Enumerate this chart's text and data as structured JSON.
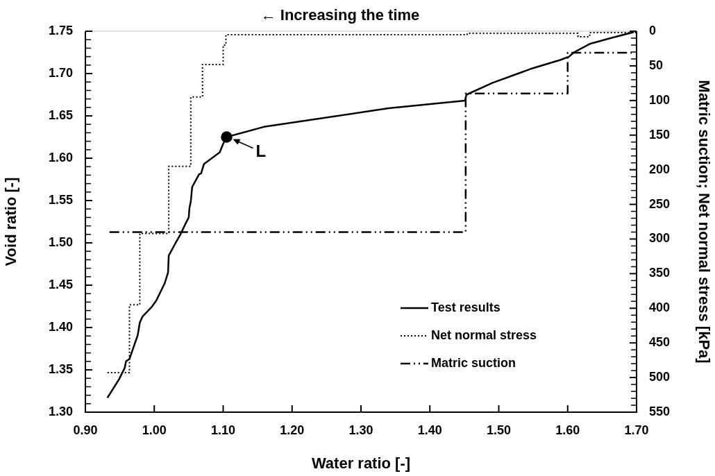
{
  "chart_data": {
    "type": "line",
    "xlabel": "Water ratio [-]",
    "ylabel": "Void ratio [-]",
    "y2label": "Matric suction; Net normal stress [kPa]",
    "annotations": [
      "← Increasing the time",
      {
        "text": "L",
        "x": 1.105,
        "y": 1.625
      }
    ],
    "legend": "bottom right",
    "marker": "none",
    "xlim": [
      0.9,
      1.7
    ],
    "xticks": [
      {
        "value": 0.9,
        "label": "0.90"
      },
      {
        "value": 1.0,
        "label": "1.00"
      },
      {
        "value": 1.1,
        "label": "1.10"
      },
      {
        "value": 1.2,
        "label": "1.20"
      },
      {
        "value": 1.3,
        "label": "1.30"
      },
      {
        "value": 1.4,
        "label": "1.40"
      },
      {
        "value": 1.5,
        "label": "1.50"
      },
      {
        "value": 1.6,
        "label": "1.60"
      },
      {
        "value": 1.7,
        "label": "1.70"
      }
    ],
    "ylim": [
      1.3,
      1.75
    ],
    "yticks": [
      {
        "value": 1.3,
        "label": "1.30"
      },
      {
        "value": 1.31,
        "label": null
      },
      {
        "value": 1.32,
        "label": null
      },
      {
        "value": 1.33,
        "label": null
      },
      {
        "value": 1.34,
        "label": null
      },
      {
        "value": 1.35,
        "label": "1.35"
      },
      {
        "value": 1.36,
        "label": null
      },
      {
        "value": 1.37,
        "label": null
      },
      {
        "value": 1.38,
        "label": null
      },
      {
        "value": 1.39,
        "label": null
      },
      {
        "value": 1.4,
        "label": "1.40"
      },
      {
        "value": 1.41,
        "label": null
      },
      {
        "value": 1.42,
        "label": null
      },
      {
        "value": 1.43,
        "label": null
      },
      {
        "value": 1.44,
        "label": null
      },
      {
        "value": 1.45,
        "label": "1.45"
      },
      {
        "value": 1.46,
        "label": null
      },
      {
        "value": 1.47,
        "label": null
      },
      {
        "value": 1.48,
        "label": null
      },
      {
        "value": 1.49,
        "label": null
      },
      {
        "value": 1.5,
        "label": "1.50"
      },
      {
        "value": 1.51,
        "label": null
      },
      {
        "value": 1.52,
        "label": null
      },
      {
        "value": 1.53,
        "label": null
      },
      {
        "value": 1.54,
        "label": null
      },
      {
        "value": 1.55,
        "label": "1.55"
      },
      {
        "value": 1.56,
        "label": null
      },
      {
        "value": 1.57,
        "label": null
      },
      {
        "value": 1.58,
        "label": null
      },
      {
        "value": 1.59,
        "label": null
      },
      {
        "value": 1.6,
        "label": "1.60"
      },
      {
        "value": 1.61,
        "label": null
      },
      {
        "value": 1.62,
        "label": null
      },
      {
        "value": 1.63,
        "label": null
      },
      {
        "value": 1.64,
        "label": null
      },
      {
        "value": 1.65,
        "label": "1.65"
      },
      {
        "value": 1.66,
        "label": null
      },
      {
        "value": 1.67,
        "label": null
      },
      {
        "value": 1.68,
        "label": null
      },
      {
        "value": 1.69,
        "label": null
      },
      {
        "value": 1.7,
        "label": "1.70"
      },
      {
        "value": 1.71,
        "label": null
      },
      {
        "value": 1.72,
        "label": null
      },
      {
        "value": 1.73,
        "label": null
      },
      {
        "value": 1.74,
        "label": null
      },
      {
        "value": 1.75,
        "label": "1.75"
      }
    ],
    "y2lim": [
      550,
      0
    ],
    "y2ticks": [
      0,
      {
        "value": 10,
        "label": null
      },
      {
        "value": 20,
        "label": null
      },
      {
        "value": 30,
        "label": null
      },
      {
        "value": 40,
        "label": null
      },
      50,
      {
        "value": 60,
        "label": null
      },
      {
        "value": 70,
        "label": null
      },
      {
        "value": 80,
        "label": null
      },
      {
        "value": 90,
        "label": null
      },
      100,
      {
        "value": 110,
        "label": null
      },
      {
        "value": 120,
        "label": null
      },
      {
        "value": 130,
        "label": null
      },
      {
        "value": 140,
        "label": null
      },
      150,
      {
        "value": 160,
        "label": null
      },
      {
        "value": 170,
        "label": null
      },
      {
        "value": 180,
        "label": null
      },
      {
        "value": 190,
        "label": null
      },
      200,
      {
        "value": 210,
        "label": null
      },
      {
        "value": 220,
        "label": null
      },
      {
        "value": 230,
        "label": null
      },
      {
        "value": 240,
        "label": null
      },
      250,
      {
        "value": 260,
        "label": null
      },
      {
        "value": 270,
        "label": null
      },
      {
        "value": 280,
        "label": null
      },
      {
        "value": 290,
        "label": null
      },
      300,
      {
        "value": 310,
        "label": null
      },
      {
        "value": 320,
        "label": null
      },
      {
        "value": 330,
        "label": null
      },
      {
        "value": 340,
        "label": null
      },
      350,
      {
        "value": 360,
        "label": null
      },
      {
        "value": 370,
        "label": null
      },
      {
        "value": 380,
        "label": null
      },
      {
        "value": 390,
        "label": null
      },
      400,
      {
        "value": 410,
        "label": null
      },
      {
        "value": 420,
        "label": null
      },
      {
        "value": 430,
        "label": null
      },
      {
        "value": 440,
        "label": null
      },
      450,
      {
        "value": 460,
        "label": null
      },
      {
        "value": 470,
        "label": null
      },
      {
        "value": 480,
        "label": null
      },
      {
        "value": 490,
        "label": null
      },
      500,
      {
        "value": 510,
        "label": null
      },
      {
        "value": 520,
        "label": null
      },
      {
        "value": 530,
        "label": null
      },
      {
        "value": 540,
        "label": null
      },
      550
    ],
    "series": [
      {
        "name": "Test results",
        "line_style": "solid",
        "color": "#000000",
        "x": [
          0.932,
          0.949,
          0.957,
          0.959,
          0.964,
          0.976,
          0.979,
          0.983,
          0.996,
          1.003,
          1.015,
          1.02,
          1.021,
          1.031,
          1.038,
          1.045,
          1.05,
          1.051,
          1.053,
          1.055,
          1.065,
          1.068,
          1.072,
          1.095,
          1.1,
          1.105,
          1.159,
          1.34,
          1.451,
          1.453,
          1.491,
          1.528,
          1.548,
          1.589,
          1.602,
          1.609,
          1.632,
          1.663,
          1.696
        ],
        "values": [
          1.317,
          1.339,
          1.352,
          1.36,
          1.363,
          1.391,
          1.406,
          1.413,
          1.424,
          1.432,
          1.452,
          1.465,
          1.485,
          1.5,
          1.51,
          1.522,
          1.53,
          1.541,
          1.549,
          1.566,
          1.581,
          1.582,
          1.593,
          1.607,
          1.617,
          1.625,
          1.637,
          1.659,
          1.668,
          1.675,
          1.689,
          1.7,
          1.706,
          1.716,
          1.72,
          1.725,
          1.735,
          1.742,
          1.749
        ]
      },
      {
        "name": "Net normal stress",
        "type": "step",
        "axis": "y2",
        "line_style": "dotted",
        "color": "#000000",
        "x": [
          0.932,
          0.964,
          0.979,
          1.021,
          1.053,
          1.07,
          1.1,
          1.104,
          1.454,
          1.615,
          1.632,
          1.7
        ],
        "values": [
          493,
          395,
          292,
          195,
          95,
          48,
          20,
          5,
          3,
          8,
          2,
          2
        ]
      },
      {
        "name": "Matric suction",
        "type": "step",
        "axis": "y2",
        "line_style": "dashed",
        "color": "#000000",
        "x": [
          0.935,
          1.452,
          1.6,
          1.695
        ],
        "values": [
          290,
          90,
          31,
          31
        ]
      },
      {
        "type": "scatter",
        "marker": "circle",
        "color": "#000000",
        "x": [
          1.105
        ],
        "values": [
          1.625
        ]
      }
    ]
  }
}
